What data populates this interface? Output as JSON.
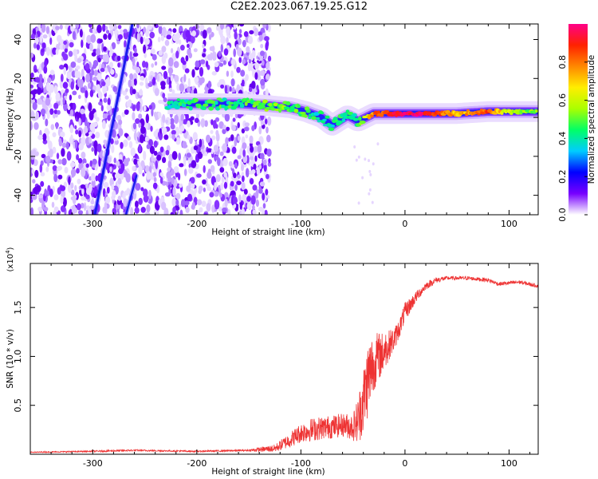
{
  "title": "C2E2.2023.067.19.25.G12",
  "chart_data": [
    {
      "type": "heatmap",
      "xlabel": "Height of straight line (km)",
      "ylabel": "Frequency (Hz)",
      "xlim": [
        -360,
        128
      ],
      "ylim": [
        -50,
        48
      ],
      "xticks": [
        -300,
        -200,
        -100,
        0,
        100
      ],
      "yticks": [
        -40,
        -20,
        0,
        20,
        40
      ],
      "xtick_labels": [
        "-300",
        "-200",
        "-100",
        "0",
        "100"
      ],
      "ytick_labels": [
        "-40",
        "-20",
        "0",
        "20",
        "40"
      ],
      "colorbar": {
        "label": "Normalized spectral amplitude",
        "range": [
          0,
          1
        ],
        "ticks": [
          0.0,
          0.2,
          0.4,
          0.6,
          0.8
        ],
        "tick_labels": [
          "0.0",
          "0.2",
          "0.4",
          "0.6",
          "0.8"
        ],
        "colors": [
          "#ffffff",
          "#7700ff",
          "#0000ff",
          "#00ccff",
          "#00ff66",
          "#aaff00",
          "#ffee00",
          "#ff8800",
          "#ff2200",
          "#ff0088"
        ]
      },
      "noise_region_x": [
        -360,
        -130
      ],
      "steep_trace": {
        "x": [
          -298,
          -262
        ],
        "y": [
          -50,
          48
        ]
      },
      "steep_trace_2": {
        "x": [
          -268,
          -258
        ],
        "y": [
          -50,
          -30
        ]
      },
      "main_trace": {
        "x": [
          -228,
          -200,
          -160,
          -130,
          -110,
          -95,
          -80,
          -70,
          -55,
          -45,
          -30,
          -10,
          0,
          20,
          50,
          80,
          100,
          128
        ],
        "y": [
          7,
          7,
          7,
          6,
          5,
          3,
          0,
          -4,
          1,
          -2,
          2,
          2,
          2,
          2,
          2,
          3,
          3,
          3
        ],
        "amplitude": [
          0.4,
          0.45,
          0.45,
          0.5,
          0.5,
          0.45,
          0.4,
          0.4,
          0.45,
          0.45,
          0.8,
          0.9,
          0.95,
          0.95,
          0.7,
          0.85,
          0.6,
          0.5
        ]
      }
    },
    {
      "type": "line",
      "xlabel": "Height of straight line (km)",
      "ylabel": "SNR (10 * v/v)",
      "multiplier": "(x10",
      "multiplier_exp": "4",
      "multiplier_close": ")",
      "xlim": [
        -360,
        128
      ],
      "ylim": [
        0,
        1.95
      ],
      "xticks": [
        -300,
        -200,
        -100,
        0,
        100
      ],
      "yticks": [
        0.5,
        1.0,
        1.5
      ],
      "xtick_labels": [
        "-300",
        "-200",
        "-100",
        "0",
        "100"
      ],
      "ytick_labels": [
        "0.5",
        "1.0",
        "1.5"
      ],
      "color": "#ee3333",
      "series": [
        {
          "name": "SNR",
          "x": [
            -360,
            -300,
            -260,
            -200,
            -150,
            -125,
            -110,
            -100,
            -90,
            -80,
            -70,
            -60,
            -50,
            -45,
            -40,
            -35,
            -30,
            -25,
            -20,
            -15,
            -10,
            -5,
            0,
            10,
            20,
            30,
            40,
            60,
            80,
            90,
            100,
            110,
            128
          ],
          "y": [
            0.02,
            0.03,
            0.04,
            0.03,
            0.04,
            0.06,
            0.15,
            0.22,
            0.25,
            0.27,
            0.28,
            0.3,
            0.28,
            0.35,
            0.55,
            0.8,
            0.95,
            1.0,
            1.05,
            1.12,
            1.18,
            1.3,
            1.45,
            1.6,
            1.72,
            1.78,
            1.8,
            1.8,
            1.78,
            1.74,
            1.75,
            1.76,
            1.72
          ],
          "noise": [
            0.005,
            0.008,
            0.008,
            0.008,
            0.01,
            0.04,
            0.08,
            0.1,
            0.12,
            0.12,
            0.12,
            0.12,
            0.14,
            0.25,
            0.35,
            0.4,
            0.3,
            0.25,
            0.2,
            0.15,
            0.12,
            0.1,
            0.1,
            0.06,
            0.04,
            0.03,
            0.02,
            0.02,
            0.02,
            0.02,
            0.02,
            0.02,
            0.02
          ]
        }
      ]
    }
  ]
}
